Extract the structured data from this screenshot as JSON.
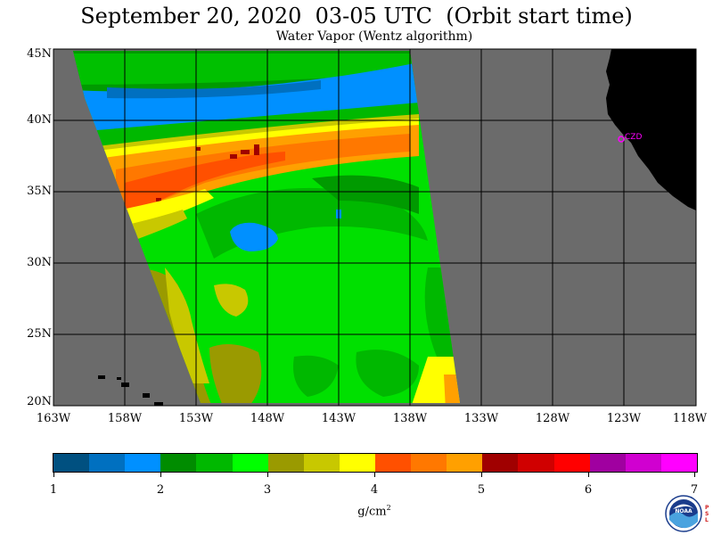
{
  "title": "September 20, 2020  03-05 UTC  (Orbit start time)",
  "subtitle": "Water Vapor (Wentz algorithm)",
  "y_axis_labels": [
    "45N",
    "40N",
    "35N",
    "30N",
    "25N",
    "20N"
  ],
  "x_axis_labels": [
    "163W",
    "158W",
    "153W",
    "148W",
    "143W",
    "138W",
    "133W",
    "128W",
    "123W",
    "118W"
  ],
  "station_label": "CZD",
  "colorbar": {
    "colors": [
      "#005080",
      "#0070c0",
      "#0090ff",
      "#008c00",
      "#00b800",
      "#00ff00",
      "#9a9a00",
      "#c8c800",
      "#ffff00",
      "#ff5000",
      "#ff7800",
      "#ffa000",
      "#a00000",
      "#d00000",
      "#ff0000",
      "#a000a0",
      "#d000d0",
      "#ff00ff"
    ],
    "tick_labels": [
      "1",
      "2",
      "3",
      "4",
      "5",
      "6",
      "7"
    ],
    "units_base": "g/cm",
    "units_exp": "2"
  },
  "colors": {
    "ocean_no_data": "#6b6b6b",
    "land": "#000000",
    "grid": "#000000",
    "station": "#ff00ff"
  },
  "logo_text": "NOAA",
  "lab_text": "PSL"
}
